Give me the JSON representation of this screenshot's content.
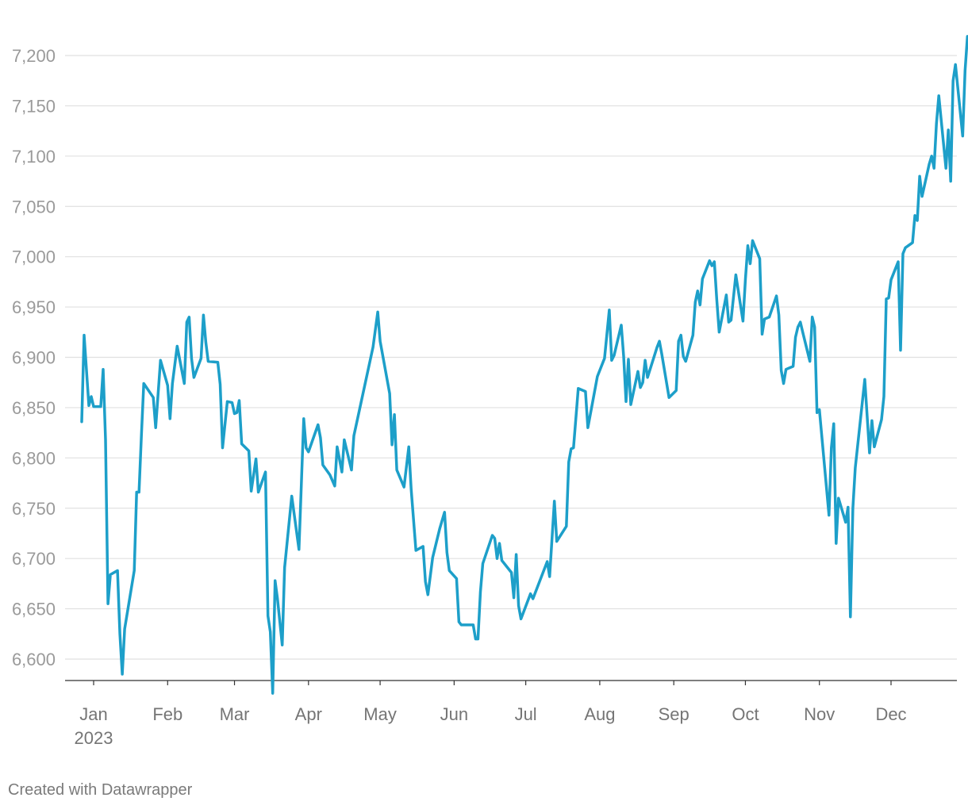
{
  "chart_data": {
    "type": "line",
    "title": "",
    "xlabel": "",
    "ylabel": "",
    "x_range": [
      "2022-12-27",
      "2023-12-28"
    ],
    "ylim": [
      6570,
      7240
    ],
    "y_ticks": [
      6600,
      6650,
      6700,
      6750,
      6800,
      6850,
      6900,
      6950,
      7000,
      7050,
      7100,
      7150,
      7200
    ],
    "y_tick_labels": [
      "6,600",
      "6,650",
      "6,700",
      "6,750",
      "6,800",
      "6,850",
      "6,900",
      "6,950",
      "7,000",
      "7,050",
      "7,100",
      "7,150",
      "7,200"
    ],
    "x_ticks": [
      {
        "date": "2023-01-01",
        "label": "Jan",
        "sublabel": "2023"
      },
      {
        "date": "2023-02-01",
        "label": "Feb"
      },
      {
        "date": "2023-03-01",
        "label": "Mar"
      },
      {
        "date": "2023-04-01",
        "label": "Apr"
      },
      {
        "date": "2023-05-01",
        "label": "May"
      },
      {
        "date": "2023-06-01",
        "label": "Jun"
      },
      {
        "date": "2023-07-01",
        "label": "Jul"
      },
      {
        "date": "2023-08-01",
        "label": "Aug"
      },
      {
        "date": "2023-09-01",
        "label": "Sep"
      },
      {
        "date": "2023-10-01",
        "label": "Oct"
      },
      {
        "date": "2023-11-01",
        "label": "Nov"
      },
      {
        "date": "2023-12-01",
        "label": "Dec"
      }
    ],
    "grid": true,
    "line_color": "#1d9fc9",
    "series": [
      {
        "points": [
          [
            "2022-12-27",
            6836
          ],
          [
            "2022-12-28",
            6922
          ],
          [
            "2022-12-30",
            6852
          ],
          [
            "2022-12-31",
            6861
          ],
          [
            "2023-01-01",
            6851
          ],
          [
            "2023-01-04",
            6851
          ],
          [
            "2023-01-05",
            6888
          ],
          [
            "2023-01-06",
            6818
          ],
          [
            "2023-01-07",
            6655
          ],
          [
            "2023-01-08",
            6684
          ],
          [
            "2023-01-11",
            6688
          ],
          [
            "2023-01-12",
            6625
          ],
          [
            "2023-01-13",
            6585
          ],
          [
            "2023-01-14",
            6630
          ],
          [
            "2023-01-18",
            6688
          ],
          [
            "2023-01-19",
            6766
          ],
          [
            "2023-01-20",
            6766
          ],
          [
            "2023-01-21",
            6822
          ],
          [
            "2023-01-22",
            6874
          ],
          [
            "2023-01-26",
            6860
          ],
          [
            "2023-01-27",
            6830
          ],
          [
            "2023-01-29",
            6897
          ],
          [
            "2023-02-01",
            6872
          ],
          [
            "2023-02-02",
            6839
          ],
          [
            "2023-02-03",
            6874
          ],
          [
            "2023-02-05",
            6911
          ],
          [
            "2023-02-08",
            6874
          ],
          [
            "2023-02-09",
            6935
          ],
          [
            "2023-02-10",
            6940
          ],
          [
            "2023-02-11",
            6899
          ],
          [
            "2023-02-12",
            6880
          ],
          [
            "2023-02-15",
            6899
          ],
          [
            "2023-02-16",
            6942
          ],
          [
            "2023-02-17",
            6915
          ],
          [
            "2023-02-18",
            6896
          ],
          [
            "2023-02-22",
            6895
          ],
          [
            "2023-02-23",
            6873
          ],
          [
            "2023-02-24",
            6810
          ],
          [
            "2023-02-26",
            6856
          ],
          [
            "2023-02-28",
            6855
          ],
          [
            "2023-03-01",
            6844
          ],
          [
            "2023-03-02",
            6845
          ],
          [
            "2023-03-03",
            6857
          ],
          [
            "2023-03-04",
            6814
          ],
          [
            "2023-03-07",
            6807
          ],
          [
            "2023-03-08",
            6767
          ],
          [
            "2023-03-10",
            6799
          ],
          [
            "2023-03-11",
            6766
          ],
          [
            "2023-03-14",
            6786
          ],
          [
            "2023-03-15",
            6643
          ],
          [
            "2023-03-16",
            6627
          ],
          [
            "2023-03-17",
            6566
          ],
          [
            "2023-03-18",
            6678
          ],
          [
            "2023-03-19",
            6660
          ],
          [
            "2023-03-21",
            6614
          ],
          [
            "2023-03-22",
            6691
          ],
          [
            "2023-03-25",
            6762
          ],
          [
            "2023-03-28",
            6709
          ],
          [
            "2023-03-30",
            6839
          ],
          [
            "2023-03-31",
            6810
          ],
          [
            "2023-04-01",
            6806
          ],
          [
            "2023-04-05",
            6833
          ],
          [
            "2023-04-06",
            6820
          ],
          [
            "2023-04-07",
            6793
          ],
          [
            "2023-04-10",
            6783
          ],
          [
            "2023-04-12",
            6772
          ],
          [
            "2023-04-13",
            6811
          ],
          [
            "2023-04-15",
            6786
          ],
          [
            "2023-04-16",
            6818
          ],
          [
            "2023-04-19",
            6788
          ],
          [
            "2023-04-20",
            6822
          ],
          [
            "2023-04-28",
            6910
          ],
          [
            "2023-04-30",
            6945
          ],
          [
            "2023-05-01",
            6916
          ],
          [
            "2023-05-05",
            6864
          ],
          [
            "2023-05-06",
            6813
          ],
          [
            "2023-05-07",
            6843
          ],
          [
            "2023-05-08",
            6788
          ],
          [
            "2023-05-11",
            6771
          ],
          [
            "2023-05-13",
            6811
          ],
          [
            "2023-05-14",
            6769
          ],
          [
            "2023-05-16",
            6708
          ],
          [
            "2023-05-19",
            6712
          ],
          [
            "2023-05-20",
            6677
          ],
          [
            "2023-05-21",
            6664
          ],
          [
            "2023-05-23",
            6701
          ],
          [
            "2023-05-26",
            6730
          ],
          [
            "2023-05-28",
            6746
          ],
          [
            "2023-05-29",
            6706
          ],
          [
            "2023-05-30",
            6688
          ],
          [
            "2023-06-02",
            6680
          ],
          [
            "2023-06-03",
            6637
          ],
          [
            "2023-06-04",
            6634
          ],
          [
            "2023-06-09",
            6634
          ],
          [
            "2023-06-10",
            6620
          ],
          [
            "2023-06-11",
            6620
          ],
          [
            "2023-06-12",
            6667
          ],
          [
            "2023-06-13",
            6695
          ],
          [
            "2023-06-17",
            6723
          ],
          [
            "2023-06-18",
            6720
          ],
          [
            "2023-06-19",
            6700
          ],
          [
            "2023-06-20",
            6715
          ],
          [
            "2023-06-21",
            6698
          ],
          [
            "2023-06-25",
            6686
          ],
          [
            "2023-06-26",
            6661
          ],
          [
            "2023-06-27",
            6704
          ],
          [
            "2023-06-28",
            6653
          ],
          [
            "2023-06-29",
            6640
          ],
          [
            "2023-07-03",
            6665
          ],
          [
            "2023-07-04",
            6660
          ],
          [
            "2023-07-10",
            6697
          ],
          [
            "2023-07-11",
            6682
          ],
          [
            "2023-07-13",
            6757
          ],
          [
            "2023-07-14",
            6717
          ],
          [
            "2023-07-18",
            6732
          ],
          [
            "2023-07-19",
            6796
          ],
          [
            "2023-07-20",
            6809
          ],
          [
            "2023-07-21",
            6810
          ],
          [
            "2023-07-23",
            6869
          ],
          [
            "2023-07-26",
            6866
          ],
          [
            "2023-07-27",
            6830
          ],
          [
            "2023-07-31",
            6881
          ],
          [
            "2023-08-03",
            6899
          ],
          [
            "2023-08-05",
            6947
          ],
          [
            "2023-08-06",
            6897
          ],
          [
            "2023-08-07",
            6902
          ],
          [
            "2023-08-10",
            6932
          ],
          [
            "2023-08-11",
            6901
          ],
          [
            "2023-08-12",
            6856
          ],
          [
            "2023-08-13",
            6898
          ],
          [
            "2023-08-14",
            6853
          ],
          [
            "2023-08-17",
            6886
          ],
          [
            "2023-08-18",
            6870
          ],
          [
            "2023-08-19",
            6875
          ],
          [
            "2023-08-20",
            6897
          ],
          [
            "2023-08-21",
            6880
          ],
          [
            "2023-08-25",
            6910
          ],
          [
            "2023-08-26",
            6916
          ],
          [
            "2023-08-27",
            6903
          ],
          [
            "2023-08-30",
            6860
          ],
          [
            "2023-09-02",
            6867
          ],
          [
            "2023-09-03",
            6916
          ],
          [
            "2023-09-04",
            6922
          ],
          [
            "2023-09-05",
            6901
          ],
          [
            "2023-09-06",
            6896
          ],
          [
            "2023-09-09",
            6922
          ],
          [
            "2023-09-10",
            6955
          ],
          [
            "2023-09-11",
            6966
          ],
          [
            "2023-09-12",
            6952
          ],
          [
            "2023-09-13",
            6978
          ],
          [
            "2023-09-16",
            6996
          ],
          [
            "2023-09-17",
            6991
          ],
          [
            "2023-09-18",
            6995
          ],
          [
            "2023-09-19",
            6958
          ],
          [
            "2023-09-20",
            6925
          ],
          [
            "2023-09-23",
            6962
          ],
          [
            "2023-09-24",
            6935
          ],
          [
            "2023-09-25",
            6937
          ],
          [
            "2023-09-27",
            6982
          ],
          [
            "2023-09-30",
            6936
          ],
          [
            "2023-10-01",
            6978
          ],
          [
            "2023-10-02",
            7011
          ],
          [
            "2023-10-03",
            6993
          ],
          [
            "2023-10-04",
            7016
          ],
          [
            "2023-10-07",
            6998
          ],
          [
            "2023-10-08",
            6923
          ],
          [
            "2023-10-09",
            6938
          ],
          [
            "2023-10-11",
            6940
          ],
          [
            "2023-10-14",
            6961
          ],
          [
            "2023-10-15",
            6942
          ],
          [
            "2023-10-16",
            6887
          ],
          [
            "2023-10-17",
            6874
          ],
          [
            "2023-10-18",
            6888
          ],
          [
            "2023-10-21",
            6891
          ],
          [
            "2023-10-22",
            6920
          ],
          [
            "2023-10-23",
            6930
          ],
          [
            "2023-10-24",
            6935
          ],
          [
            "2023-10-25",
            6925
          ],
          [
            "2023-10-28",
            6896
          ],
          [
            "2023-10-29",
            6940
          ],
          [
            "2023-10-30",
            6930
          ],
          [
            "2023-10-31",
            6845
          ],
          [
            "2023-11-01",
            6848
          ],
          [
            "2023-11-05",
            6743
          ],
          [
            "2023-11-06",
            6810
          ],
          [
            "2023-11-07",
            6834
          ],
          [
            "2023-11-08",
            6715
          ],
          [
            "2023-11-09",
            6760
          ],
          [
            "2023-11-10",
            6752
          ],
          [
            "2023-11-12",
            6736
          ],
          [
            "2023-11-13",
            6751
          ],
          [
            "2023-11-14",
            6642
          ],
          [
            "2023-11-15",
            6750
          ],
          [
            "2023-11-16",
            6790
          ],
          [
            "2023-11-20",
            6878
          ],
          [
            "2023-11-22",
            6805
          ],
          [
            "2023-11-23",
            6837
          ],
          [
            "2023-11-24",
            6811
          ],
          [
            "2023-11-27",
            6838
          ],
          [
            "2023-11-28",
            6861
          ],
          [
            "2023-11-29",
            6958
          ],
          [
            "2023-11-30",
            6959
          ],
          [
            "2023-12-01",
            6977
          ],
          [
            "2023-12-04",
            6995
          ],
          [
            "2023-12-05",
            6907
          ],
          [
            "2023-12-06",
            7003
          ],
          [
            "2023-12-07",
            7009
          ],
          [
            "2023-12-10",
            7014
          ],
          [
            "2023-12-11",
            7041
          ],
          [
            "2023-12-12",
            7036
          ],
          [
            "2023-12-13",
            7080
          ],
          [
            "2023-12-14",
            7060
          ],
          [
            "2023-12-17",
            7092
          ],
          [
            "2023-12-18",
            7100
          ],
          [
            "2023-12-19",
            7088
          ],
          [
            "2023-12-20",
            7132
          ],
          [
            "2023-12-21",
            7160
          ],
          [
            "2023-12-24",
            7088
          ],
          [
            "2023-12-25",
            7126
          ],
          [
            "2023-12-26",
            7075
          ],
          [
            "2023-12-27",
            7175
          ],
          [
            "2023-12-28",
            7191
          ],
          [
            "2023-12-31",
            7120
          ],
          [
            "2024-01-01",
            7185
          ],
          [
            "2024-01-02",
            7219
          ],
          [
            "2024-01-03",
            7210
          ],
          [
            "2024-01-04",
            7238
          ]
        ]
      }
    ]
  },
  "footer": {
    "credit": "Created with Datawrapper"
  }
}
